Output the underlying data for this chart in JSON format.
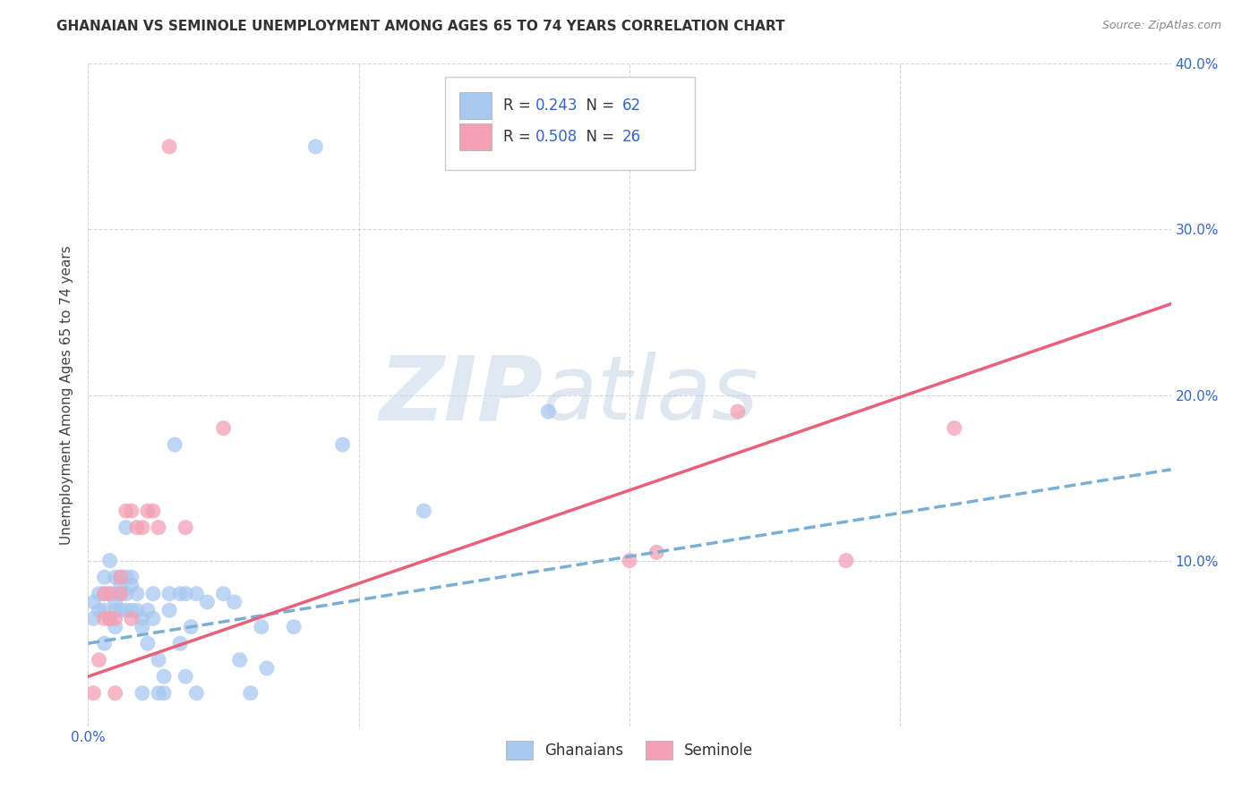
{
  "title": "GHANAIAN VS SEMINOLE UNEMPLOYMENT AMONG AGES 65 TO 74 YEARS CORRELATION CHART",
  "source": "Source: ZipAtlas.com",
  "ylabel": "Unemployment Among Ages 65 to 74 years",
  "xlim": [
    0.0,
    0.2
  ],
  "ylim": [
    0.0,
    0.4
  ],
  "xticks": [
    0.0,
    0.05,
    0.1,
    0.15,
    0.2
  ],
  "yticks": [
    0.0,
    0.1,
    0.2,
    0.3,
    0.4
  ],
  "xtick_labels": [
    "0.0%",
    "",
    "",
    "",
    "20.0%"
  ],
  "ytick_labels_right": [
    "",
    "10.0%",
    "20.0%",
    "30.0%",
    "40.0%"
  ],
  "background_color": "#ffffff",
  "grid_color": "#cccccc",
  "watermark_zip": "ZIP",
  "watermark_atlas": "atlas",
  "ghanaian_color": "#a8c8f0",
  "seminole_color": "#f4a0b5",
  "ghanaian_line_color": "#7aafd4",
  "seminole_line_color": "#e8607a",
  "legend_r_ghanaian": "0.243",
  "legend_n_ghanaian": "62",
  "legend_r_seminole": "0.508",
  "legend_n_seminole": "26",
  "ghanaian_line_x0": 0.0,
  "ghanaian_line_y0": 0.05,
  "ghanaian_line_x1": 0.2,
  "ghanaian_line_y1": 0.155,
  "seminole_line_x0": 0.0,
  "seminole_line_y0": 0.03,
  "seminole_line_x1": 0.2,
  "seminole_line_y1": 0.255,
  "ghanaian_x": [
    0.001,
    0.001,
    0.002,
    0.002,
    0.003,
    0.003,
    0.003,
    0.003,
    0.004,
    0.004,
    0.004,
    0.005,
    0.005,
    0.005,
    0.005,
    0.005,
    0.006,
    0.006,
    0.006,
    0.006,
    0.007,
    0.007,
    0.007,
    0.007,
    0.008,
    0.008,
    0.008,
    0.009,
    0.009,
    0.01,
    0.01,
    0.01,
    0.011,
    0.011,
    0.012,
    0.012,
    0.013,
    0.013,
    0.014,
    0.014,
    0.015,
    0.015,
    0.016,
    0.017,
    0.017,
    0.018,
    0.018,
    0.019,
    0.02,
    0.02,
    0.022,
    0.025,
    0.027,
    0.028,
    0.03,
    0.032,
    0.033,
    0.038,
    0.042,
    0.047,
    0.062,
    0.085
  ],
  "ghanaian_y": [
    0.075,
    0.065,
    0.08,
    0.07,
    0.09,
    0.08,
    0.07,
    0.05,
    0.1,
    0.08,
    0.065,
    0.09,
    0.08,
    0.075,
    0.07,
    0.06,
    0.09,
    0.085,
    0.08,
    0.07,
    0.12,
    0.09,
    0.08,
    0.07,
    0.09,
    0.085,
    0.07,
    0.08,
    0.07,
    0.065,
    0.06,
    0.02,
    0.07,
    0.05,
    0.08,
    0.065,
    0.04,
    0.02,
    0.03,
    0.02,
    0.08,
    0.07,
    0.17,
    0.08,
    0.05,
    0.03,
    0.08,
    0.06,
    0.08,
    0.02,
    0.075,
    0.08,
    0.075,
    0.04,
    0.02,
    0.06,
    0.035,
    0.06,
    0.35,
    0.17,
    0.13,
    0.19
  ],
  "seminole_x": [
    0.001,
    0.002,
    0.003,
    0.003,
    0.004,
    0.004,
    0.005,
    0.005,
    0.006,
    0.006,
    0.007,
    0.008,
    0.008,
    0.009,
    0.01,
    0.011,
    0.012,
    0.013,
    0.015,
    0.018,
    0.025,
    0.1,
    0.105,
    0.12,
    0.14,
    0.16
  ],
  "seminole_y": [
    0.02,
    0.04,
    0.08,
    0.065,
    0.08,
    0.065,
    0.065,
    0.02,
    0.09,
    0.08,
    0.13,
    0.13,
    0.065,
    0.12,
    0.12,
    0.13,
    0.13,
    0.12,
    0.35,
    0.12,
    0.18,
    0.1,
    0.105,
    0.19,
    0.1,
    0.18
  ]
}
